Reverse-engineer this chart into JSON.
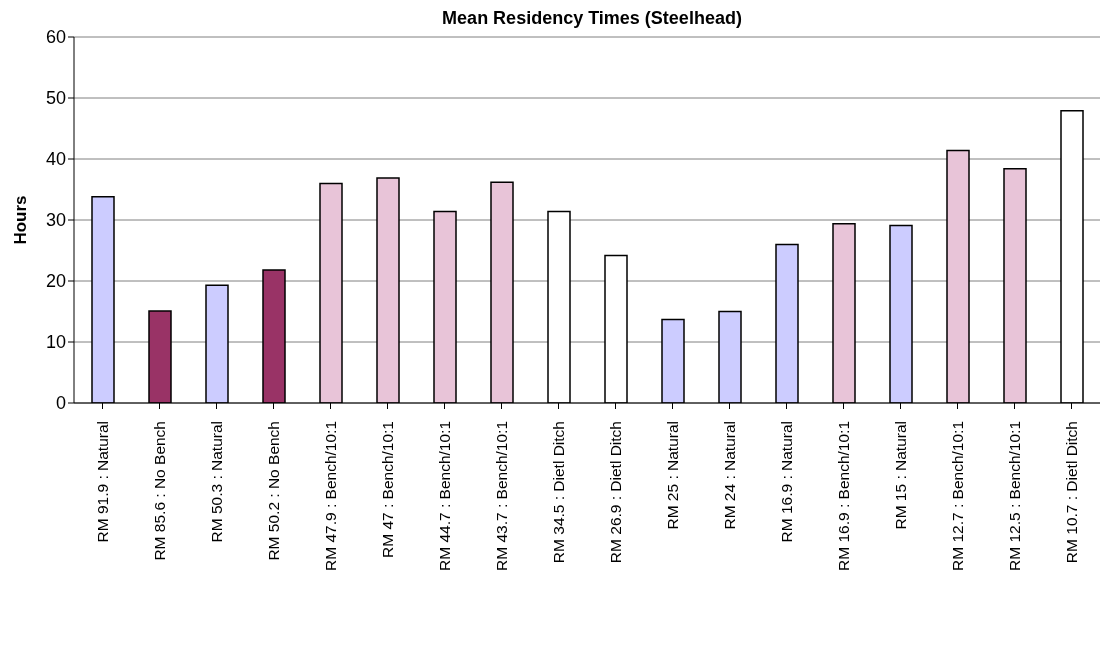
{
  "chart_data": {
    "type": "bar",
    "title": "Mean Residency Times (Steelhead)",
    "ylabel": "Hours",
    "categories": [
      "RM 91.9 : Natural",
      "RM 85.6 : No Bench",
      "RM 50.3 : Natural",
      "RM 50.2 : No Bench",
      "RM 47.9 : Bench/10:1",
      "RM 47 : Bench/10:1",
      "RM 44.7 : Bench/10:1",
      "RM 43.7 : Bench/10:1",
      "RM 34.5 : Dietl Ditch",
      "RM 26.9 : Dietl Ditch",
      "RM 25 : Natural",
      "RM 24 : Natural",
      "RM 16.9 : Natural",
      "RM 16.9 : Bench/10:1",
      "RM 15 : Natural",
      "RM 12.7 : Bench/10:1",
      "RM 12.5 : Bench/10:1",
      "RM 10.7 : Dietl Ditch"
    ],
    "values": [
      33.8,
      15.1,
      19.3,
      21.8,
      36.0,
      36.9,
      31.4,
      36.2,
      31.4,
      24.2,
      13.7,
      15.0,
      26.0,
      29.4,
      29.1,
      41.4,
      38.4,
      47.9
    ],
    "colors": [
      "#ccccff",
      "#993366",
      "#ccccff",
      "#993366",
      "#e8c4d8",
      "#e8c4d8",
      "#e8c4d8",
      "#e8c4d8",
      "#ffffff",
      "#ffffff",
      "#ccccff",
      "#ccccff",
      "#ccccff",
      "#e8c4d8",
      "#ccccff",
      "#e8c4d8",
      "#e8c4d8",
      "#ffffff"
    ],
    "ylim": [
      0,
      60
    ],
    "yticks": [
      0,
      10,
      20,
      30,
      40,
      50,
      60
    ],
    "grid": "y"
  }
}
